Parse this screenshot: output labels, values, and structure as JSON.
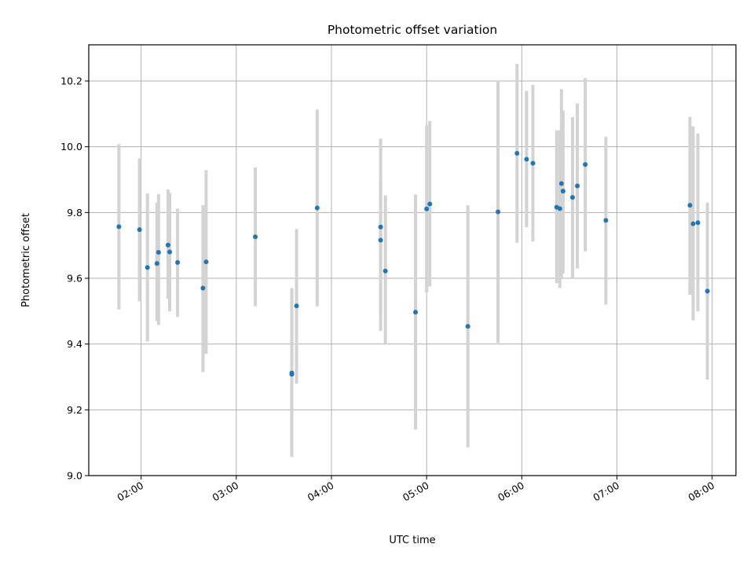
{
  "chart_data": {
    "type": "scatter",
    "title": "Photometric offset variation",
    "xlabel": "UTC time",
    "ylabel": "Photometric offset",
    "x_axis_type": "time",
    "xlim": [
      "01:27",
      "08:15"
    ],
    "ylim": [
      9.0,
      10.31
    ],
    "x_ticks": [
      "02:00",
      "03:00",
      "04:00",
      "05:00",
      "06:00",
      "07:00",
      "08:00"
    ],
    "y_ticks": [
      "9.0",
      "9.2",
      "9.4",
      "9.6",
      "9.8",
      "10.0",
      "10.2"
    ],
    "grid": true,
    "marker_color": "#1f77b4",
    "errorbar_color": "#d3d3d3",
    "points": [
      {
        "time": "01:46",
        "y": 9.757,
        "low": 9.505,
        "high": 10.008
      },
      {
        "time": "01:59",
        "y": 9.748,
        "low": 9.53,
        "high": 9.965
      },
      {
        "time": "02:04",
        "y": 9.633,
        "low": 9.408,
        "high": 9.858
      },
      {
        "time": "02:10",
        "y": 9.645,
        "low": 9.47,
        "high": 9.83
      },
      {
        "time": "02:11",
        "y": 9.679,
        "low": 9.458,
        "high": 9.856
      },
      {
        "time": "02:17",
        "y": 9.701,
        "low": 9.538,
        "high": 9.87
      },
      {
        "time": "02:18",
        "y": 9.68,
        "low": 9.5,
        "high": 9.86
      },
      {
        "time": "02:23",
        "y": 9.648,
        "low": 9.483,
        "high": 9.812
      },
      {
        "time": "02:39",
        "y": 9.57,
        "low": 9.315,
        "high": 9.822
      },
      {
        "time": "02:41",
        "y": 9.65,
        "low": 9.37,
        "high": 9.929
      },
      {
        "time": "03:12",
        "y": 9.726,
        "low": 9.515,
        "high": 9.937
      },
      {
        "time": "03:35",
        "y": 9.312,
        "low": 9.057,
        "high": 9.57
      },
      {
        "time": "03:35",
        "y": 9.308,
        "low": 9.1,
        "high": 9.55
      },
      {
        "time": "03:38",
        "y": 9.516,
        "low": 9.28,
        "high": 9.75
      },
      {
        "time": "03:51",
        "y": 9.814,
        "low": 9.515,
        "high": 10.113
      },
      {
        "time": "04:31",
        "y": 9.756,
        "low": 9.49,
        "high": 10.025
      },
      {
        "time": "04:31",
        "y": 9.716,
        "low": 9.44,
        "high": 9.9
      },
      {
        "time": "04:34",
        "y": 9.622,
        "low": 9.4,
        "high": 9.852
      },
      {
        "time": "04:53",
        "y": 9.497,
        "low": 9.14,
        "high": 9.855
      },
      {
        "time": "05:00",
        "y": 9.811,
        "low": 9.557,
        "high": 10.065
      },
      {
        "time": "05:02",
        "y": 9.826,
        "low": 9.575,
        "high": 10.078
      },
      {
        "time": "05:26",
        "y": 9.454,
        "low": 9.086,
        "high": 9.822
      },
      {
        "time": "05:45",
        "y": 9.802,
        "low": 9.403,
        "high": 10.2
      },
      {
        "time": "05:57",
        "y": 9.98,
        "low": 9.708,
        "high": 10.252
      },
      {
        "time": "06:03",
        "y": 9.962,
        "low": 9.755,
        "high": 10.17
      },
      {
        "time": "06:07",
        "y": 9.95,
        "low": 9.712,
        "high": 10.188
      },
      {
        "time": "06:22",
        "y": 9.816,
        "low": 9.585,
        "high": 10.05
      },
      {
        "time": "06:24",
        "y": 9.812,
        "low": 9.57,
        "high": 10.05
      },
      {
        "time": "06:25",
        "y": 9.888,
        "low": 9.6,
        "high": 10.175
      },
      {
        "time": "06:26",
        "y": 9.865,
        "low": 9.615,
        "high": 10.11
      },
      {
        "time": "06:32",
        "y": 9.846,
        "low": 9.602,
        "high": 10.09
      },
      {
        "time": "06:35",
        "y": 9.881,
        "low": 9.63,
        "high": 10.132
      },
      {
        "time": "06:40",
        "y": 9.946,
        "low": 9.682,
        "high": 10.209
      },
      {
        "time": "06:53",
        "y": 9.776,
        "low": 9.52,
        "high": 10.03
      },
      {
        "time": "07:46",
        "y": 9.822,
        "low": 9.55,
        "high": 10.091
      },
      {
        "time": "07:48",
        "y": 9.766,
        "low": 9.472,
        "high": 10.062
      },
      {
        "time": "07:51",
        "y": 9.769,
        "low": 9.5,
        "high": 10.04
      },
      {
        "time": "07:57",
        "y": 9.561,
        "low": 9.292,
        "high": 9.83
      }
    ]
  }
}
